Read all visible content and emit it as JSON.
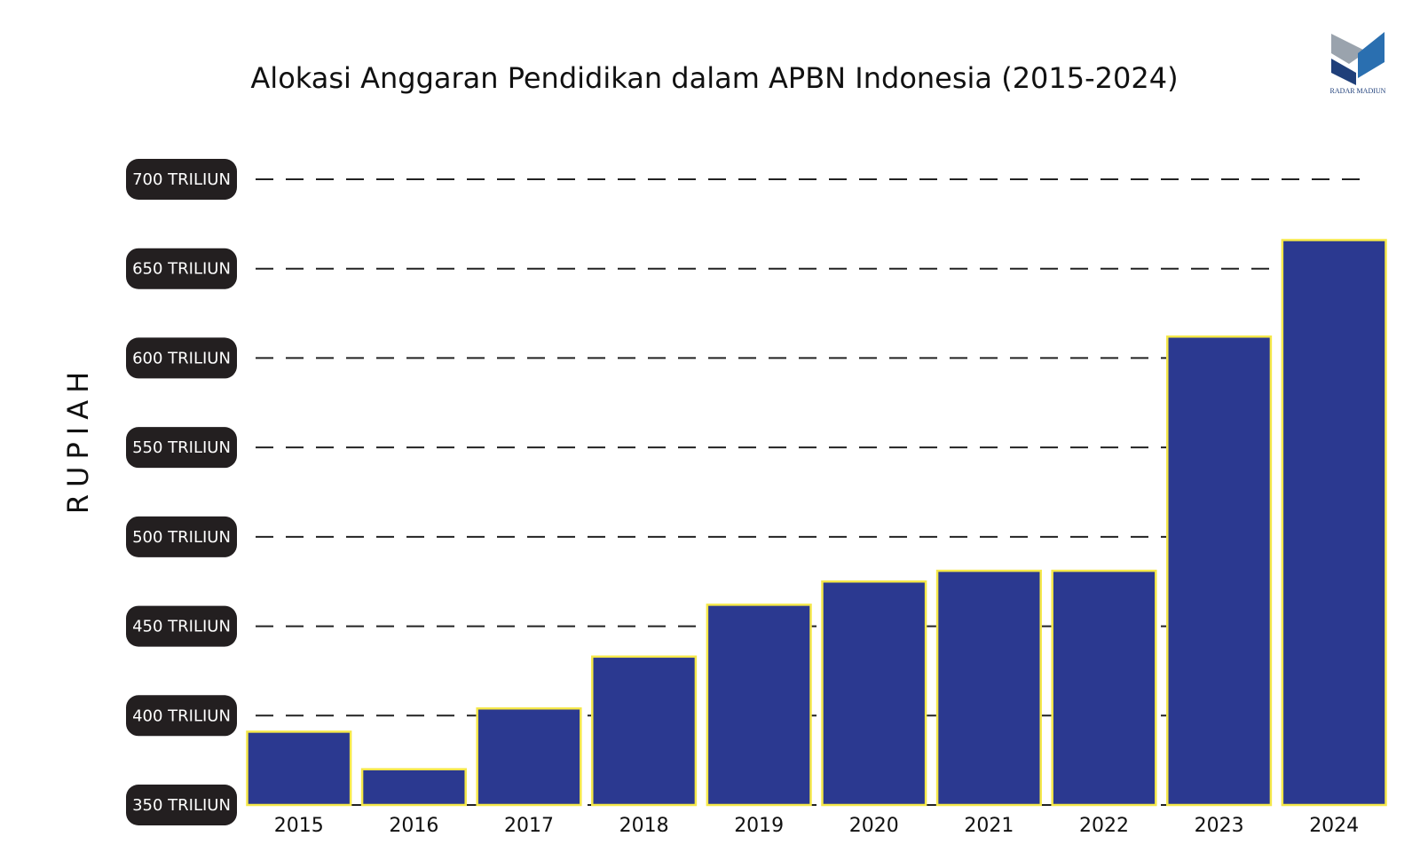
{
  "chart_data": {
    "type": "bar",
    "title": "Alokasi Anggaran Pendidikan dalam APBN Indonesia (2015-2024)",
    "y_label": "RUPIAH",
    "logo_text": "RADAR MADIUN",
    "categories": [
      "2015",
      "2016",
      "2017",
      "2018",
      "2019",
      "2020",
      "2021",
      "2022",
      "2023",
      "2024"
    ],
    "values": [
      391,
      370,
      404,
      433,
      462,
      475,
      481,
      481,
      612,
      666
    ],
    "color": "#2b3990",
    "edge_color": "#f5e84a",
    "ylim": [
      350,
      700
    ],
    "yticks": [
      {
        "value": 350,
        "label": "350 TRILIUN"
      },
      {
        "value": 400,
        "label": "400 TRILIUN"
      },
      {
        "value": 450,
        "label": "450 TRILIUN"
      },
      {
        "value": 500,
        "label": "500 TRILIUN"
      },
      {
        "value": 550,
        "label": "550 TRILIUN"
      },
      {
        "value": 600,
        "label": "600 TRILIUN"
      },
      {
        "value": 650,
        "label": "650 TRILIUN"
      },
      {
        "value": 700,
        "label": "700 TRILIUN"
      }
    ],
    "grid": true
  }
}
